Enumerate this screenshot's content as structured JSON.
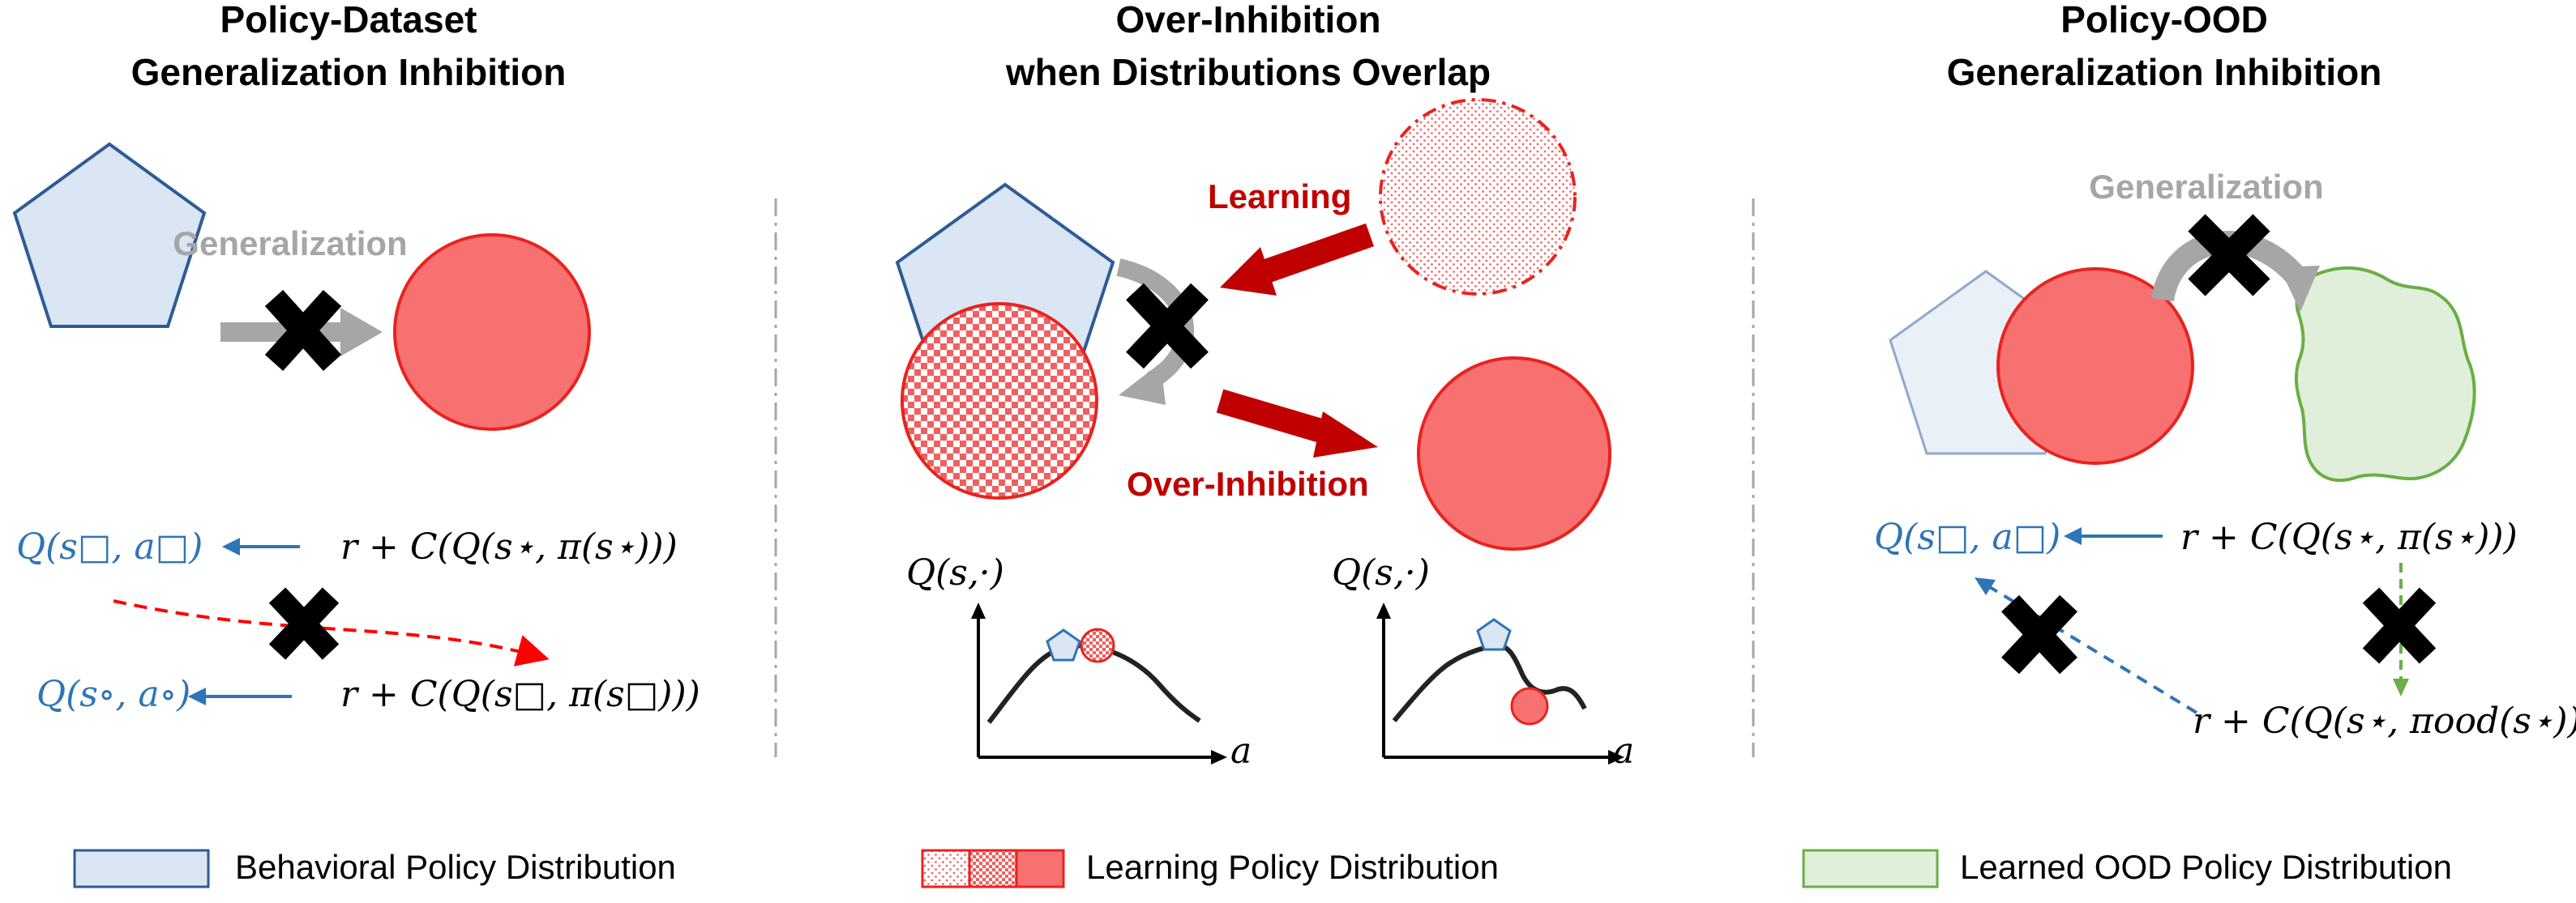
{
  "panels": {
    "left": {
      "title_line1": "Policy-Dataset",
      "title_line2": "Generalization Inhibition",
      "generalization": "Generalization",
      "eq_q_box": "Q(s□, a□)",
      "eq_target_top": "r + C(Q(s⋆, π(s⋆)))",
      "eq_q_circ": "Q(s∘, a∘)",
      "eq_target_bottom": "r + C(Q(s□, π(s□)))"
    },
    "middle": {
      "title_line1": "Over-Inhibition",
      "title_line2": "when Distributions Overlap",
      "learning": "Learning",
      "over_inhibition": "Over-Inhibition",
      "plot1_ylabel": "Q(s,·)",
      "plot1_xlabel": "a",
      "plot2_ylabel": "Q(s,·)",
      "plot2_xlabel": "a"
    },
    "right": {
      "title_line1": "Policy-OOD",
      "title_line2": "Generalization Inhibition",
      "generalization": "Generalization",
      "eq_q_box": "Q(s□, a□)",
      "eq_target_top": "r + C(Q(s⋆, π(s⋆)))",
      "eq_target_ood": "r + C(Q(s⋆, πood(s⋆)))"
    }
  },
  "legend": {
    "behavioral": "Behavioral Policy Distribution",
    "learning": "Learning Policy Distribution",
    "ood": "Learned OOD Policy Distribution"
  },
  "colors": {
    "behavioral_fill": "#dae6f3",
    "behavioral_stroke": "#2e5b95",
    "learning_fill": "#f87171",
    "learning_stroke": "#e8231f",
    "dark_red": "#c00000",
    "ood_fill": "#e0efda",
    "ood_stroke": "#6aae45",
    "q_blue": "#2e75b6",
    "grey_arrow": "#a6a6a6"
  }
}
